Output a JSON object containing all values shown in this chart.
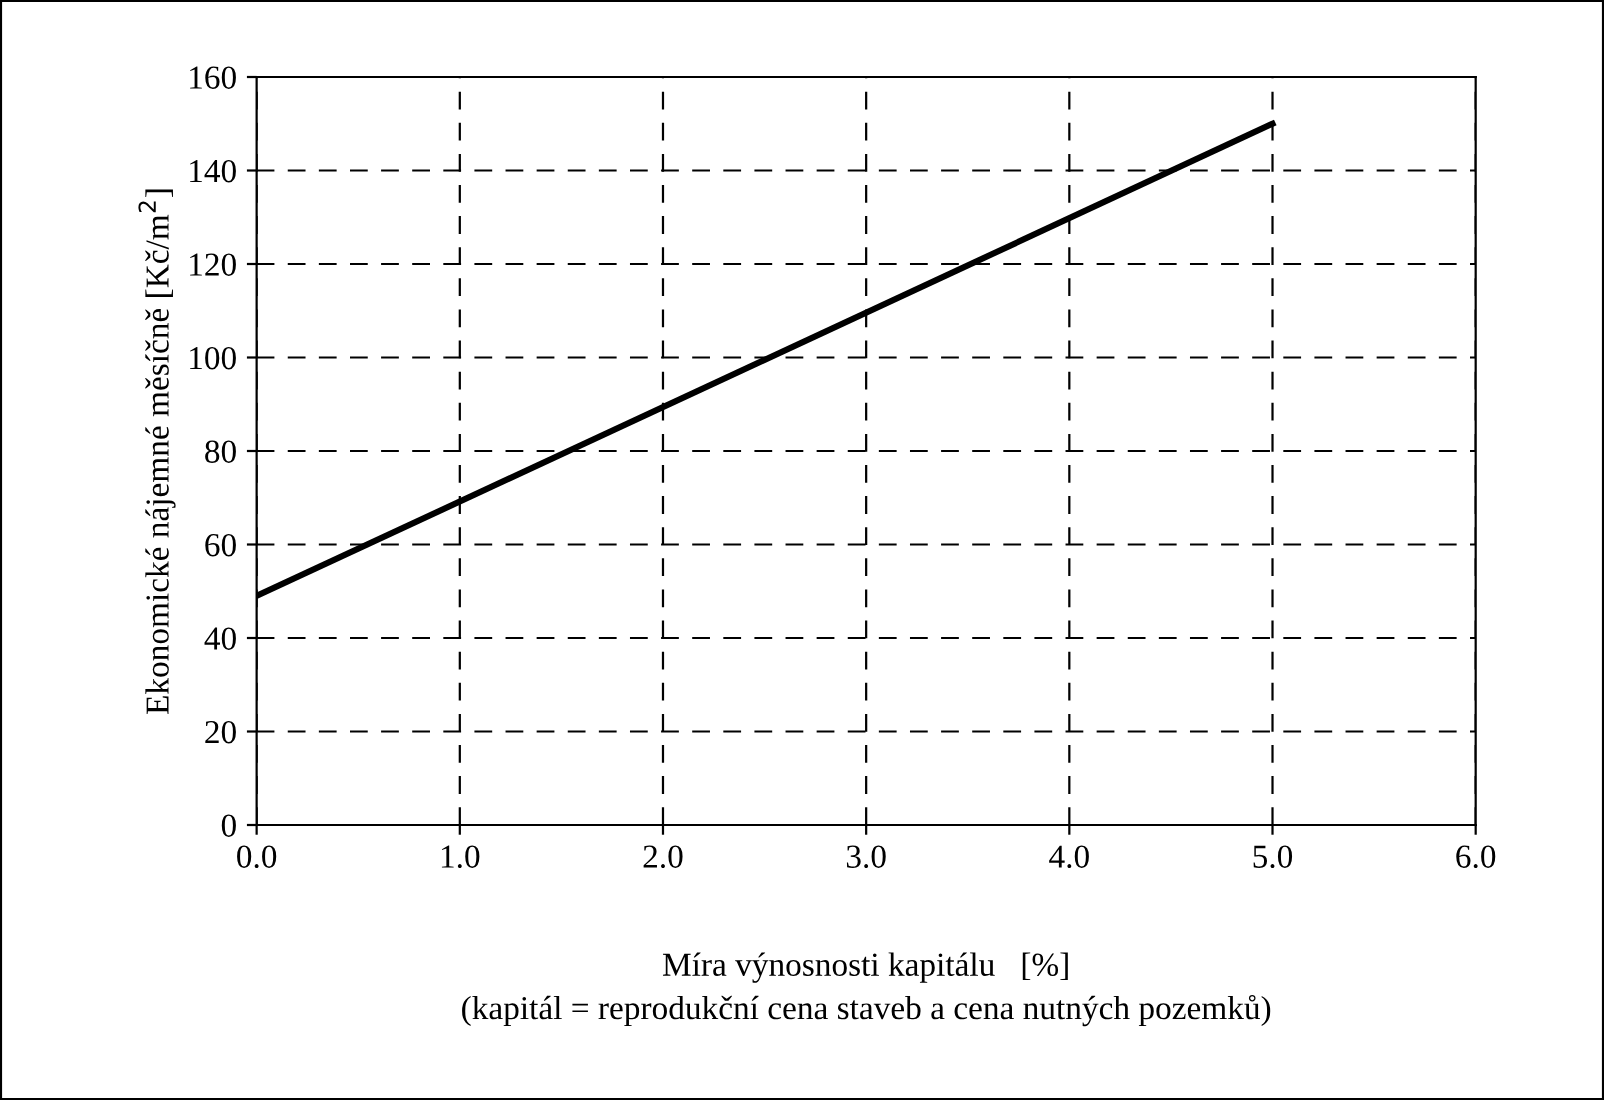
{
  "chart_data": {
    "type": "line",
    "xlabel": "Míra výnosnosti kapitálu   [%]\n(kapitál = reprodukční cena staveb a cena nutných pozemků)",
    "ylabel": "Ekonomické nájemné měsíčně [Kč/m$^{2}$]",
    "series": [
      {
        "color": "#000000",
        "x": [
          0,
          5
        ],
        "values": [
          49,
          150
        ]
      }
    ],
    "xlim": [
      0,
      6
    ],
    "xticks": [
      {
        "value": 0,
        "label": "0.0"
      },
      {
        "value": 1,
        "label": "1.0"
      },
      {
        "value": 2,
        "label": "2.0"
      },
      {
        "value": 3,
        "label": "3.0"
      },
      {
        "value": 4,
        "label": "4.0"
      },
      {
        "value": 5,
        "label": "5.0"
      },
      {
        "value": 6,
        "label": "6.0"
      }
    ],
    "ylim": [
      0,
      160
    ],
    "yticks": [
      0,
      20,
      40,
      60,
      80,
      100,
      120,
      140,
      160
    ],
    "grid": true,
    "marker": "none",
    "line_style": "solid"
  }
}
